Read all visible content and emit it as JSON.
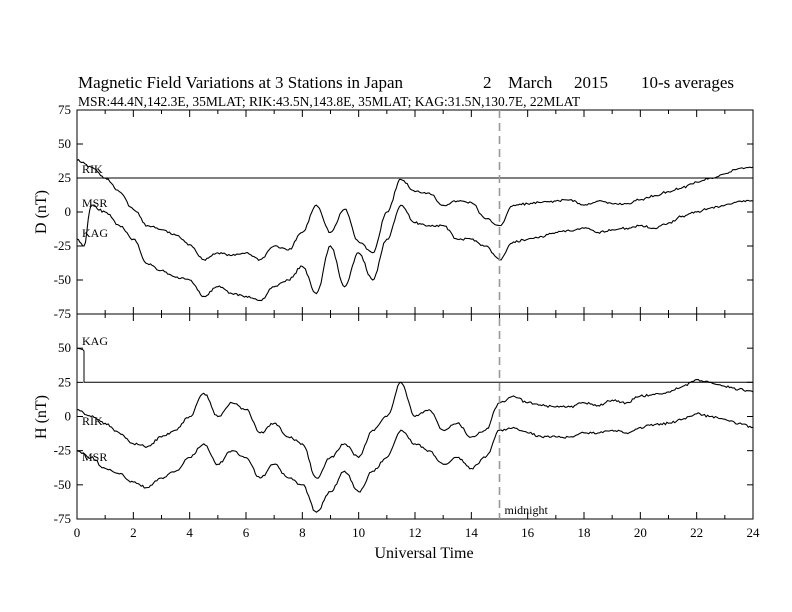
{
  "header": {
    "title_main": "Magnetic Field Variations at 3 Stations in Japan",
    "title_day": "2",
    "title_month": "March",
    "title_year": "2015",
    "title_avg": "10-s averages",
    "subtitle": "MSR:44.4N,142.3E, 35MLAT;  RIK:43.5N,143.8E, 35MLAT;  KAG:31.5N,130.7E, 22MLAT"
  },
  "chart_data": [
    {
      "type": "line",
      "panel": "D",
      "ylabel": "D (nT)",
      "xlabel": "",
      "ylim": [
        -75,
        75
      ],
      "xlim": [
        0,
        24
      ],
      "yticks": [
        "75",
        "50",
        "25",
        "0",
        "-25",
        "-50",
        "-75"
      ],
      "yticks_num": [
        75,
        50,
        25,
        0,
        -25,
        -50,
        -75
      ],
      "series": [
        {
          "name": "RIK",
          "x": [
            0,
            24
          ],
          "y": [
            25,
            25
          ]
        },
        {
          "name": "MSR",
          "x": [
            0,
            0.5,
            1,
            1.5,
            2,
            2.5,
            3,
            3.5,
            4,
            4.5,
            5,
            5.5,
            6,
            6.5,
            7,
            7.5,
            8,
            8.5,
            9,
            9.5,
            10,
            10.5,
            11,
            11.5,
            12,
            12.5,
            13,
            13.5,
            14,
            14.5,
            15,
            15.5,
            16,
            16.5,
            17,
            17.5,
            18,
            18.5,
            19,
            19.5,
            20,
            20.5,
            21,
            21.5,
            22,
            22.5,
            23,
            23.5,
            24
          ],
          "y": [
            38,
            33,
            25,
            15,
            2,
            -10,
            -13,
            -17,
            -24,
            -35,
            -30,
            -32,
            -30,
            -35,
            -25,
            -28,
            -15,
            5,
            -15,
            2,
            -22,
            -30,
            0,
            24,
            15,
            14,
            5,
            8,
            7,
            -5,
            -10,
            5,
            6,
            7,
            8,
            9,
            5,
            8,
            6,
            6,
            9,
            12,
            15,
            18,
            22,
            25,
            28,
            32,
            33
          ]
        },
        {
          "name": "KAG",
          "x": [
            0,
            0.25,
            0.5,
            1,
            1.5,
            2,
            2.5,
            3,
            3.5,
            4,
            4.5,
            5,
            5.5,
            6,
            6.5,
            7,
            7.5,
            8,
            8.5,
            9,
            9.5,
            10,
            10.5,
            11,
            11.5,
            12,
            12.5,
            13,
            13.5,
            14,
            14.5,
            15,
            15.5,
            16,
            16.5,
            17,
            17.5,
            18,
            18.5,
            19,
            19.5,
            20,
            20.5,
            21,
            21.5,
            22,
            22.5,
            23,
            23.5,
            24
          ],
          "y": [
            -20,
            -25,
            5,
            0,
            -10,
            -20,
            -38,
            -43,
            -48,
            -50,
            -62,
            -55,
            -60,
            -62,
            -65,
            -55,
            -50,
            -40,
            -60,
            -25,
            -55,
            -30,
            -50,
            -20,
            5,
            -8,
            -10,
            -10,
            -20,
            -20,
            -25,
            -35,
            -22,
            -20,
            -18,
            -15,
            -14,
            -12,
            -15,
            -13,
            -12,
            -10,
            -12,
            -8,
            -3,
            0,
            3,
            5,
            8,
            8
          ]
        }
      ]
    },
    {
      "type": "line",
      "panel": "H",
      "ylabel": "H (nT)",
      "xlabel": "Universal Time",
      "ylim": [
        -75,
        75
      ],
      "xlim": [
        0,
        24
      ],
      "yticks": [
        "75",
        "50",
        "25",
        "0",
        "-25",
        "-50",
        "-75"
      ],
      "yticks_num": [
        75,
        50,
        25,
        0,
        -25,
        -50,
        -75
      ],
      "xticks": [
        "0",
        "2",
        "4",
        "6",
        "8",
        "10",
        "12",
        "14",
        "16",
        "18",
        "20",
        "22",
        "24"
      ],
      "xticks_num": [
        0,
        2,
        4,
        6,
        8,
        10,
        12,
        14,
        16,
        18,
        20,
        22,
        24
      ],
      "series": [
        {
          "name": "KAG",
          "x": [
            0,
            0.2,
            0.25,
            0.25,
            24
          ],
          "y": [
            50,
            49,
            48,
            25,
            25
          ]
        },
        {
          "name": "RIK",
          "x": [
            0,
            0.5,
            1,
            1.5,
            2,
            2.5,
            3,
            3.5,
            4,
            4.5,
            5,
            5.5,
            6,
            6.5,
            7,
            7.5,
            8,
            8.5,
            9,
            9.5,
            10,
            10.5,
            11,
            11.5,
            12,
            12.5,
            13,
            13.5,
            14,
            14.5,
            15,
            15.5,
            16,
            16.5,
            17,
            17.5,
            18,
            18.5,
            19,
            19.5,
            20,
            20.5,
            21,
            21.5,
            22,
            22.5,
            23,
            23.5,
            24
          ],
          "y": [
            5,
            0,
            -5,
            -12,
            -20,
            -22,
            -15,
            -10,
            0,
            17,
            0,
            10,
            5,
            -12,
            -5,
            -15,
            -20,
            -45,
            -30,
            -20,
            -30,
            -10,
            0,
            25,
            0,
            5,
            -10,
            -5,
            -15,
            -10,
            10,
            15,
            10,
            8,
            7,
            7,
            10,
            8,
            12,
            10,
            15,
            16,
            18,
            22,
            27,
            25,
            22,
            20,
            18
          ]
        },
        {
          "name": "MSR",
          "x": [
            0,
            0.5,
            1,
            1.5,
            2,
            2.5,
            3,
            3.5,
            4,
            4.5,
            5,
            5.5,
            6,
            6.5,
            7,
            7.5,
            8,
            8.5,
            9,
            9.5,
            10,
            10.5,
            11,
            11.5,
            12,
            12.5,
            13,
            13.5,
            14,
            14.5,
            15,
            15.5,
            16,
            16.5,
            17,
            17.5,
            18,
            18.5,
            19,
            19.5,
            20,
            20.5,
            21,
            21.5,
            22,
            22.5,
            23,
            23.5,
            24
          ],
          "y": [
            -25,
            -30,
            -38,
            -42,
            -48,
            -52,
            -45,
            -40,
            -30,
            -20,
            -35,
            -25,
            -30,
            -45,
            -35,
            -45,
            -50,
            -70,
            -55,
            -40,
            -55,
            -40,
            -30,
            -10,
            -20,
            -25,
            -35,
            -30,
            -38,
            -30,
            -10,
            -8,
            -12,
            -15,
            -15,
            -15,
            -12,
            -12,
            -10,
            -12,
            -8,
            -6,
            -5,
            -2,
            2,
            0,
            -2,
            -5,
            -8
          ]
        }
      ]
    }
  ],
  "annotation": {
    "text": "midnight",
    "x": 15
  }
}
